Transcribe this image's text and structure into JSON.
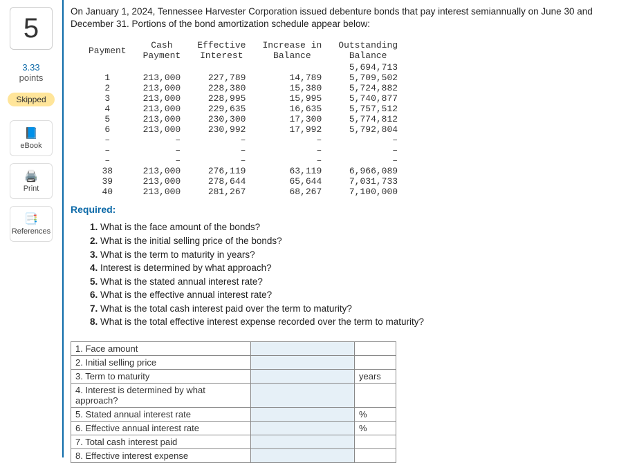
{
  "question_number": "5",
  "points_value": "3.33",
  "points_label": "points",
  "status_badge": "Skipped",
  "side_buttons": {
    "ebook": "eBook",
    "print": "Print",
    "references": "References"
  },
  "intro_text": "On January 1, 2024, Tennessee Harvester Corporation issued debenture bonds that pay interest semiannually on June 30 and December 31. Portions of the bond amortization schedule appear below:",
  "amort_headers": {
    "payment": "Payment",
    "cash": "Cash\nPayment",
    "effective": "Effective\nInterest",
    "increase": "Increase in\nBalance",
    "outstanding": "Outstanding\nBalance"
  },
  "amort_rows": [
    {
      "n": "",
      "cash": "",
      "eff": "",
      "inc": "",
      "bal": "5,694,713"
    },
    {
      "n": "1",
      "cash": "213,000",
      "eff": "227,789",
      "inc": "14,789",
      "bal": "5,709,502"
    },
    {
      "n": "2",
      "cash": "213,000",
      "eff": "228,380",
      "inc": "15,380",
      "bal": "5,724,882"
    },
    {
      "n": "3",
      "cash": "213,000",
      "eff": "228,995",
      "inc": "15,995",
      "bal": "5,740,877"
    },
    {
      "n": "4",
      "cash": "213,000",
      "eff": "229,635",
      "inc": "16,635",
      "bal": "5,757,512"
    },
    {
      "n": "5",
      "cash": "213,000",
      "eff": "230,300",
      "inc": "17,300",
      "bal": "5,774,812"
    },
    {
      "n": "6",
      "cash": "213,000",
      "eff": "230,992",
      "inc": "17,992",
      "bal": "5,792,804"
    },
    {
      "n": "–",
      "cash": "–",
      "eff": "–",
      "inc": "–",
      "bal": "–"
    },
    {
      "n": "–",
      "cash": "–",
      "eff": "–",
      "inc": "–",
      "bal": "–"
    },
    {
      "n": "–",
      "cash": "–",
      "eff": "–",
      "inc": "–",
      "bal": "–"
    },
    {
      "n": "38",
      "cash": "213,000",
      "eff": "276,119",
      "inc": "63,119",
      "bal": "6,966,089"
    },
    {
      "n": "39",
      "cash": "213,000",
      "eff": "278,644",
      "inc": "65,644",
      "bal": "7,031,733"
    },
    {
      "n": "40",
      "cash": "213,000",
      "eff": "281,267",
      "inc": "68,267",
      "bal": "7,100,000"
    }
  ],
  "required_label": "Required:",
  "questions": [
    "What is the face amount of the bonds?",
    "What is the initial selling price of the bonds?",
    "What is the term to maturity in years?",
    "Interest is determined by what approach?",
    "What is the stated annual interest rate?",
    "What is the effective annual interest rate?",
    "What is the total cash interest paid over the term to maturity?",
    "What is the total effective interest expense recorded over the term to maturity?"
  ],
  "answer_rows": [
    {
      "label": "1. Face amount",
      "unit": ""
    },
    {
      "label": "2. Initial selling price",
      "unit": ""
    },
    {
      "label": "3. Term to maturity",
      "unit": "years"
    },
    {
      "label": "4. Interest is determined by what approach?",
      "unit": ""
    },
    {
      "label": "5. Stated annual interest rate",
      "unit": "%"
    },
    {
      "label": "6. Effective annual interest rate",
      "unit": "%"
    },
    {
      "label": "7. Total cash interest paid",
      "unit": ""
    },
    {
      "label": "8. Effective interest expense",
      "unit": ""
    }
  ],
  "colors": {
    "accent": "#0d6aa8",
    "skipped_bg": "#ffe59a",
    "input_bg": "#e6f0f7"
  }
}
